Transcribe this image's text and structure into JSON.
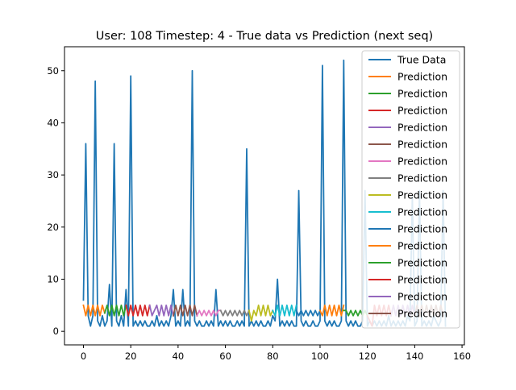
{
  "chart_data": {
    "type": "line",
    "title": "User: 108 Timestep: 4 - True data vs Prediction (next seq)",
    "xlabel": "",
    "ylabel": "",
    "xlim": [
      -8,
      161
    ],
    "ylim": [
      -2.6,
      54.6
    ],
    "xticks": [
      0,
      20,
      40,
      60,
      80,
      100,
      120,
      140,
      160
    ],
    "yticks": [
      0,
      10,
      20,
      30,
      40,
      50
    ],
    "grid": false,
    "legend": {
      "placement": "top-right",
      "entries": [
        "True Data",
        "Prediction",
        "Prediction",
        "Prediction",
        "Prediction",
        "Prediction",
        "Prediction",
        "Prediction",
        "Prediction",
        "Prediction",
        "Prediction",
        "Prediction",
        "Prediction",
        "Prediction",
        "Prediction",
        "Prediction"
      ]
    },
    "series": [
      {
        "name": "True Data",
        "color": "#1f77b4",
        "x": [
          0,
          1,
          2,
          3,
          4,
          5,
          6,
          7,
          8,
          9,
          10,
          11,
          12,
          13,
          14,
          15,
          16,
          17,
          18,
          19,
          20,
          21,
          22,
          23,
          24,
          25,
          26,
          27,
          28,
          29,
          30,
          31,
          32,
          33,
          34,
          35,
          36,
          37,
          38,
          39,
          40,
          41,
          42,
          43,
          44,
          45,
          46,
          47,
          48,
          49,
          50,
          51,
          52,
          53,
          54,
          55,
          56,
          57,
          58,
          59,
          60,
          61,
          62,
          63,
          64,
          65,
          66,
          67,
          68,
          69,
          70,
          71,
          72,
          73,
          74,
          75,
          76,
          77,
          78,
          79,
          80,
          81,
          82,
          83,
          84,
          85,
          86,
          87,
          88,
          89,
          90,
          91,
          92,
          93,
          94,
          95,
          96,
          97,
          98,
          99,
          100,
          101,
          102,
          103,
          104,
          105,
          106,
          107,
          108,
          109,
          110,
          111,
          112,
          113,
          114,
          115,
          116,
          117,
          118,
          119,
          120,
          121,
          122,
          123,
          124,
          125,
          126,
          127,
          128,
          129,
          130,
          131,
          132,
          133,
          134,
          135,
          136,
          137,
          138,
          139,
          140,
          141,
          142,
          143,
          144,
          145,
          146,
          147,
          148,
          149,
          150,
          151,
          152,
          153
        ],
        "y": [
          6,
          36,
          3,
          1,
          3,
          48,
          2,
          1,
          3,
          1,
          2,
          9,
          1,
          36,
          2,
          1,
          3,
          1,
          8,
          1,
          49,
          1,
          2,
          1,
          2,
          1,
          2,
          1,
          1,
          2,
          1,
          3,
          1,
          2,
          1,
          2,
          1,
          3,
          8,
          1,
          2,
          1,
          8,
          1,
          2,
          1,
          50,
          2,
          1,
          2,
          1,
          1,
          2,
          1,
          2,
          1,
          8,
          1,
          2,
          1,
          2,
          1,
          2,
          1,
          1,
          2,
          1,
          2,
          1,
          35,
          1,
          2,
          1,
          2,
          1,
          2,
          1,
          1,
          2,
          1,
          3,
          2,
          10,
          1,
          2,
          1,
          2,
          1,
          2,
          1,
          1,
          27,
          2,
          1,
          2,
          1,
          1,
          2,
          1,
          1,
          2,
          51,
          2,
          1,
          2,
          1,
          2,
          1,
          1,
          2,
          52,
          2,
          1,
          2,
          1,
          2,
          1,
          1,
          2,
          27,
          1,
          2,
          1,
          2,
          1,
          2,
          1,
          2,
          1,
          3,
          1,
          2,
          1,
          2,
          1,
          2,
          1,
          3,
          2,
          26,
          1,
          2,
          27,
          1,
          2,
          1,
          2,
          1,
          3,
          2,
          1,
          2,
          27,
          1
        ]
      },
      {
        "name": "Prediction",
        "color": "#ff7f0e",
        "x": [
          0,
          1,
          2,
          3,
          4,
          5,
          6,
          7,
          8,
          9
        ],
        "y": [
          5,
          3,
          5,
          3,
          5,
          3,
          5,
          3,
          5,
          3.5
        ]
      },
      {
        "name": "Prediction",
        "color": "#2ca02c",
        "x": [
          9,
          10,
          11,
          12,
          13,
          14,
          15,
          16,
          17,
          18
        ],
        "y": [
          3.5,
          5,
          3,
          5,
          3,
          5,
          3,
          5,
          3,
          5
        ]
      },
      {
        "name": "Prediction",
        "color": "#d62728",
        "x": [
          18,
          19,
          20,
          21,
          22,
          23,
          24,
          25,
          26,
          27,
          28
        ],
        "y": [
          5,
          3,
          5,
          3,
          5,
          3,
          5,
          3,
          5,
          3,
          5
        ]
      },
      {
        "name": "Prediction",
        "color": "#9467bd",
        "x": [
          28,
          29,
          30,
          31,
          32,
          33,
          34,
          35,
          36,
          37,
          38
        ],
        "y": [
          5,
          3,
          4,
          5,
          3,
          5,
          3,
          5,
          3,
          5,
          3
        ]
      },
      {
        "name": "Prediction",
        "color": "#8c564b",
        "x": [
          38,
          39,
          40,
          41,
          42,
          43,
          44,
          45,
          46,
          47,
          48
        ],
        "y": [
          3,
          5,
          3,
          5,
          3,
          5,
          3,
          5,
          3,
          5,
          3
        ]
      },
      {
        "name": "Prediction",
        "color": "#e377c2",
        "x": [
          48,
          49,
          50,
          51,
          52,
          53,
          54,
          55,
          56,
          57,
          58
        ],
        "y": [
          3,
          4,
          3,
          4,
          3,
          4,
          3,
          4,
          3,
          4,
          4
        ]
      },
      {
        "name": "Prediction",
        "color": "#7f7f7f",
        "x": [
          58,
          59,
          60,
          61,
          62,
          63,
          64,
          65,
          66,
          67,
          68,
          69,
          70
        ],
        "y": [
          4,
          3,
          4,
          3,
          4,
          3,
          4,
          3,
          4,
          3,
          4,
          3,
          4
        ]
      },
      {
        "name": "Prediction",
        "color": "#bcbd22",
        "x": [
          70,
          71,
          72,
          73,
          74,
          75,
          76,
          77,
          78,
          79,
          80
        ],
        "y": [
          4,
          2,
          4,
          3,
          5,
          3,
          5,
          3,
          5,
          3,
          4
        ]
      },
      {
        "name": "Prediction",
        "color": "#17becf",
        "x": [
          80,
          81,
          82,
          83,
          84,
          85,
          86,
          87,
          88,
          89,
          90
        ],
        "y": [
          4,
          3,
          5,
          3,
          5,
          3,
          5,
          3,
          5,
          3,
          5
        ]
      },
      {
        "name": "Prediction",
        "color": "#1f77b4",
        "x": [
          90,
          91,
          92,
          93,
          94,
          95,
          96,
          97,
          98,
          99,
          100
        ],
        "y": [
          4,
          3,
          4,
          3,
          4,
          3,
          4,
          3,
          4,
          3,
          4
        ]
      },
      {
        "name": "Prediction",
        "color": "#ff7f0e",
        "x": [
          100,
          101,
          102,
          103,
          104,
          105,
          106,
          107,
          108,
          109,
          110
        ],
        "y": [
          4,
          3,
          5,
          3,
          5,
          3,
          5,
          3,
          5,
          3,
          5
        ]
      },
      {
        "name": "Prediction",
        "color": "#2ca02c",
        "x": [
          110,
          111,
          112,
          113,
          114,
          115,
          116,
          117,
          118,
          119,
          120
        ],
        "y": [
          4,
          4,
          3,
          4,
          3,
          4,
          3,
          4,
          3,
          4,
          3
        ]
      },
      {
        "name": "Prediction",
        "color": "#d62728",
        "x": [
          120,
          121,
          122,
          123,
          124,
          125,
          126,
          127,
          128,
          129,
          130
        ],
        "y": [
          3,
          2,
          1,
          5,
          3,
          5,
          3,
          5,
          3,
          5,
          3
        ]
      },
      {
        "name": "Prediction",
        "color": "#9467bd",
        "x": [
          130,
          131,
          132,
          133,
          134,
          135,
          136,
          137,
          138,
          139,
          140
        ],
        "y": [
          3,
          5,
          3,
          5,
          3,
          5,
          3,
          5,
          3,
          5,
          3
        ]
      },
      {
        "name": "Prediction",
        "color": "#8c564b",
        "x": [
          140,
          141,
          142,
          143,
          144,
          145,
          146,
          147,
          148,
          149,
          150,
          151,
          152
        ],
        "y": [
          3,
          5,
          3,
          5,
          3,
          5,
          3,
          5,
          3,
          5,
          3,
          5,
          3
        ]
      }
    ]
  }
}
